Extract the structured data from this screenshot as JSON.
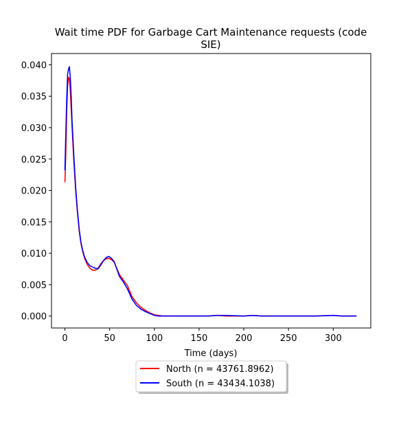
{
  "chart_data": {
    "type": "line",
    "title_lines": [
      "Wait time PDF for Garbage Cart Maintenance  requests (code",
      "SIE)"
    ],
    "xlabel": "Time (days)",
    "ylabel": "",
    "xlim": [
      -15,
      342
    ],
    "ylim": [
      -0.0019,
      0.0418
    ],
    "xticks": [
      0,
      50,
      100,
      150,
      200,
      250,
      300
    ],
    "yticks": [
      0.0,
      0.005,
      0.01,
      0.015,
      0.02,
      0.025,
      0.03,
      0.035,
      0.04
    ],
    "ytick_labels": [
      "0.000",
      "0.005",
      "0.010",
      "0.015",
      "0.020",
      "0.025",
      "0.030",
      "0.035",
      "0.040"
    ],
    "grid": false,
    "legend_placement": "below plot, centered",
    "series": [
      {
        "name": "North (n = 43761.8962)",
        "color": "#ff0000",
        "x": [
          0,
          1,
          2,
          3,
          4,
          5,
          6,
          7,
          8,
          10,
          12,
          14,
          16,
          18,
          20,
          22,
          25,
          28,
          31,
          34,
          37,
          40,
          43,
          46,
          49,
          52,
          55,
          58,
          61,
          65,
          70,
          75,
          80,
          85,
          90,
          95,
          100,
          105,
          110,
          120,
          140,
          160,
          170,
          180,
          200,
          210,
          220,
          250,
          280,
          300,
          310,
          326
        ],
        "values": [
          0.0213,
          0.026,
          0.0325,
          0.0365,
          0.038,
          0.0378,
          0.036,
          0.033,
          0.03,
          0.0245,
          0.02,
          0.0165,
          0.0135,
          0.0115,
          0.0102,
          0.0092,
          0.0082,
          0.0076,
          0.0073,
          0.0073,
          0.0076,
          0.0083,
          0.0088,
          0.0091,
          0.0092,
          0.009,
          0.0086,
          0.0076,
          0.0066,
          0.0058,
          0.0048,
          0.0031,
          0.0021,
          0.0014,
          0.0009,
          0.0005,
          0.0002,
          0.0001,
          0.0,
          0.0,
          0.0,
          0.0,
          0.0001,
          0.0,
          0.0,
          0.0001,
          0.0,
          0.0,
          0.0,
          0.0001,
          0.0,
          0.0
        ]
      },
      {
        "name": "South (n = 43434.1038)",
        "color": "#0000ff",
        "x": [
          0,
          1,
          2,
          3,
          4,
          5,
          6,
          7,
          8,
          10,
          12,
          14,
          16,
          18,
          20,
          22,
          25,
          28,
          31,
          34,
          37,
          40,
          43,
          46,
          49,
          52,
          55,
          58,
          61,
          65,
          70,
          75,
          80,
          85,
          90,
          95,
          100,
          105,
          110,
          120,
          140,
          160,
          170,
          180,
          200,
          210,
          220,
          250,
          280,
          300,
          310,
          326
        ],
        "values": [
          0.0232,
          0.029,
          0.0345,
          0.0385,
          0.0393,
          0.0397,
          0.038,
          0.035,
          0.031,
          0.0255,
          0.0205,
          0.0168,
          0.0138,
          0.0117,
          0.0104,
          0.0094,
          0.0085,
          0.008,
          0.0078,
          0.0076,
          0.0075,
          0.0081,
          0.0088,
          0.0093,
          0.0095,
          0.0092,
          0.0087,
          0.0075,
          0.0063,
          0.0055,
          0.0043,
          0.0027,
          0.0017,
          0.0011,
          0.0007,
          0.0004,
          0.0001,
          0.0,
          0.0,
          0.0,
          0.0,
          0.0,
          0.0001,
          0.0001,
          0.0,
          0.0001,
          0.0,
          0.0,
          0.0,
          0.0001,
          0.0,
          0.0
        ]
      }
    ]
  }
}
